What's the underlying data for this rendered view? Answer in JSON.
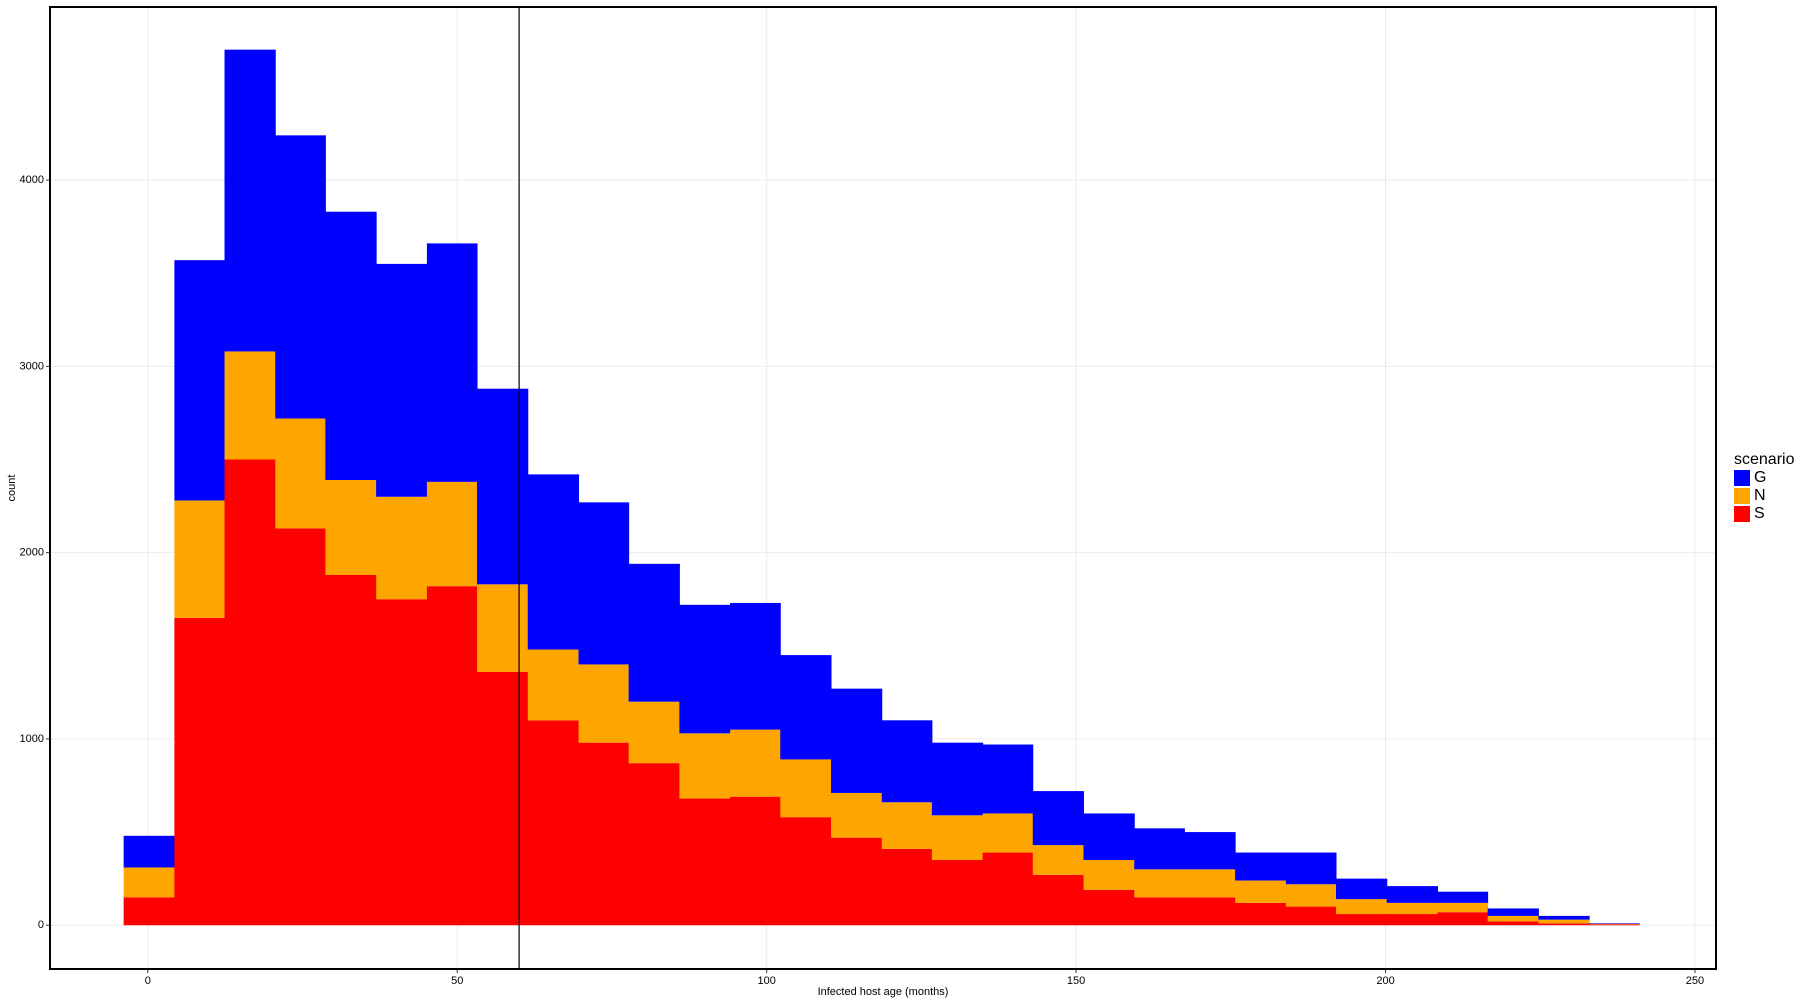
{
  "chart_data": {
    "type": "histogram",
    "xlabel": "Infected host age (months)",
    "ylabel": "count",
    "bins": [
      -3.9,
      4.3,
      12.4,
      20.6,
      28.7,
      36.9,
      45.1,
      53.2,
      61.4,
      69.6,
      77.7,
      85.9,
      94.1,
      102.2,
      110.4,
      118.6,
      126.7,
      134.9,
      143.0,
      151.2,
      159.4,
      167.5,
      175.7,
      183.9,
      192.0,
      200.2,
      208.4,
      216.5,
      224.7,
      232.9,
      241.0
    ],
    "series": [
      {
        "name": "G",
        "color": "#0000ff",
        "values": [
          170,
          1290,
          1620,
          1520,
          1440,
          1250,
          1280,
          1050,
          940,
          870,
          740,
          690,
          680,
          560,
          560,
          440,
          390,
          370,
          290,
          250,
          220,
          200,
          150,
          170,
          110,
          90,
          60,
          40,
          20,
          3
        ]
      },
      {
        "name": "N",
        "color": "#ffa500",
        "values": [
          160,
          630,
          580,
          590,
          510,
          550,
          560,
          470,
          380,
          420,
          330,
          350,
          360,
          310,
          240,
          250,
          240,
          210,
          160,
          160,
          150,
          150,
          120,
          120,
          80,
          60,
          50,
          30,
          20,
          3
        ]
      },
      {
        "name": "S",
        "color": "#ff0000",
        "values": [
          150,
          1650,
          2500,
          2130,
          1880,
          1750,
          1820,
          1360,
          1100,
          980,
          870,
          680,
          690,
          580,
          470,
          410,
          350,
          390,
          270,
          190,
          150,
          150,
          120,
          100,
          60,
          60,
          70,
          20,
          10,
          5
        ]
      }
    ],
    "legend_title": "scenario",
    "legend": "right",
    "vline": 60,
    "xlim": [
      -15.8,
      253.4
    ],
    "xticks": [
      0,
      50,
      100,
      150,
      200,
      250
    ],
    "ylim": [
      -235,
      4929
    ],
    "yticks": [
      0,
      1000,
      2000,
      3000,
      4000
    ],
    "grid": true
  }
}
